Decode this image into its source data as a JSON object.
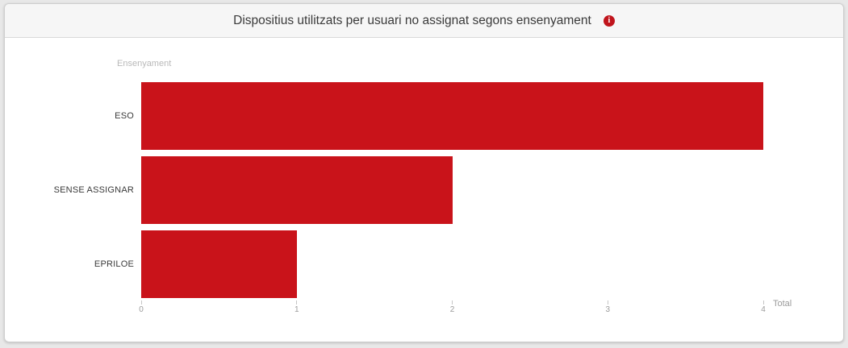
{
  "card": {
    "title": "Dispositius utilitzats per usuari no assignat segons ensenyament",
    "info_glyph": "i"
  },
  "chart_data": {
    "type": "bar",
    "orientation": "horizontal",
    "title": "Dispositius utilitzats per usuari no assignat segons ensenyament",
    "categories": [
      "ESO",
      "SENSE ASSIGNAR",
      "EPRILOE"
    ],
    "values": [
      4,
      2,
      1
    ],
    "category_axis_label": "Ensenyament",
    "value_axis_label": "Total",
    "x_ticks": [
      0,
      1,
      2,
      3,
      4
    ],
    "xlim": [
      0,
      4
    ],
    "grid": false,
    "legend": "none",
    "bar_color": "#c9131a",
    "tick_label_color": "#9b9b9b",
    "axis_title_color": "#b9b9b9"
  },
  "colors": {
    "accent_red": "#c9131a",
    "card_header_bg": "#f6f6f6",
    "page_bg": "#e8e8e8"
  }
}
